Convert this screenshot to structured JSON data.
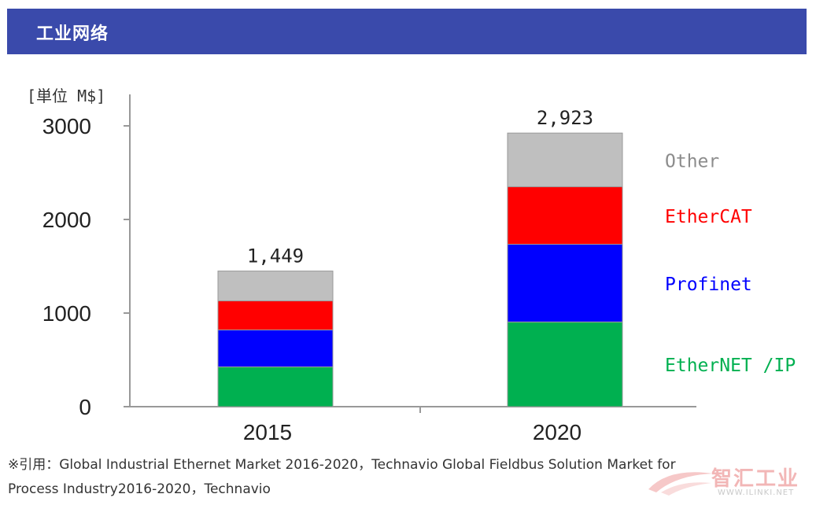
{
  "header": {
    "title": "工业网络"
  },
  "chart_data": {
    "type": "bar",
    "stacked": true,
    "unit_label": "[単位 M$]",
    "categories": [
      "2015",
      "2020"
    ],
    "totals": [
      1449,
      2923
    ],
    "total_labels": [
      "1,449",
      "2,923"
    ],
    "yticks": [
      0,
      1000,
      2000,
      3000
    ],
    "ylim": [
      0,
      3400
    ],
    "series": [
      {
        "name": "EtherNET /IP",
        "color": "#00b050",
        "values": [
          425,
          905
        ]
      },
      {
        "name": "Profinet",
        "color": "#0000ff",
        "values": [
          395,
          830
        ]
      },
      {
        "name": "EtherCAT",
        "color": "#ff0000",
        "values": [
          310,
          615
        ]
      },
      {
        "name": "Other",
        "color": "#bfbfbf",
        "values": [
          319,
          573
        ]
      }
    ],
    "legend_placement": "right",
    "grid": false
  },
  "notes": {
    "line1": "※引用：Global Industrial Ethernet Market 2016-2020，Technavio Global Fieldbus Solution Market for",
    "line2": "Process Industry2016-2020，Technavio"
  },
  "watermark": {
    "text": "智汇工业",
    "url": "WWW.ILINKI.NET"
  }
}
